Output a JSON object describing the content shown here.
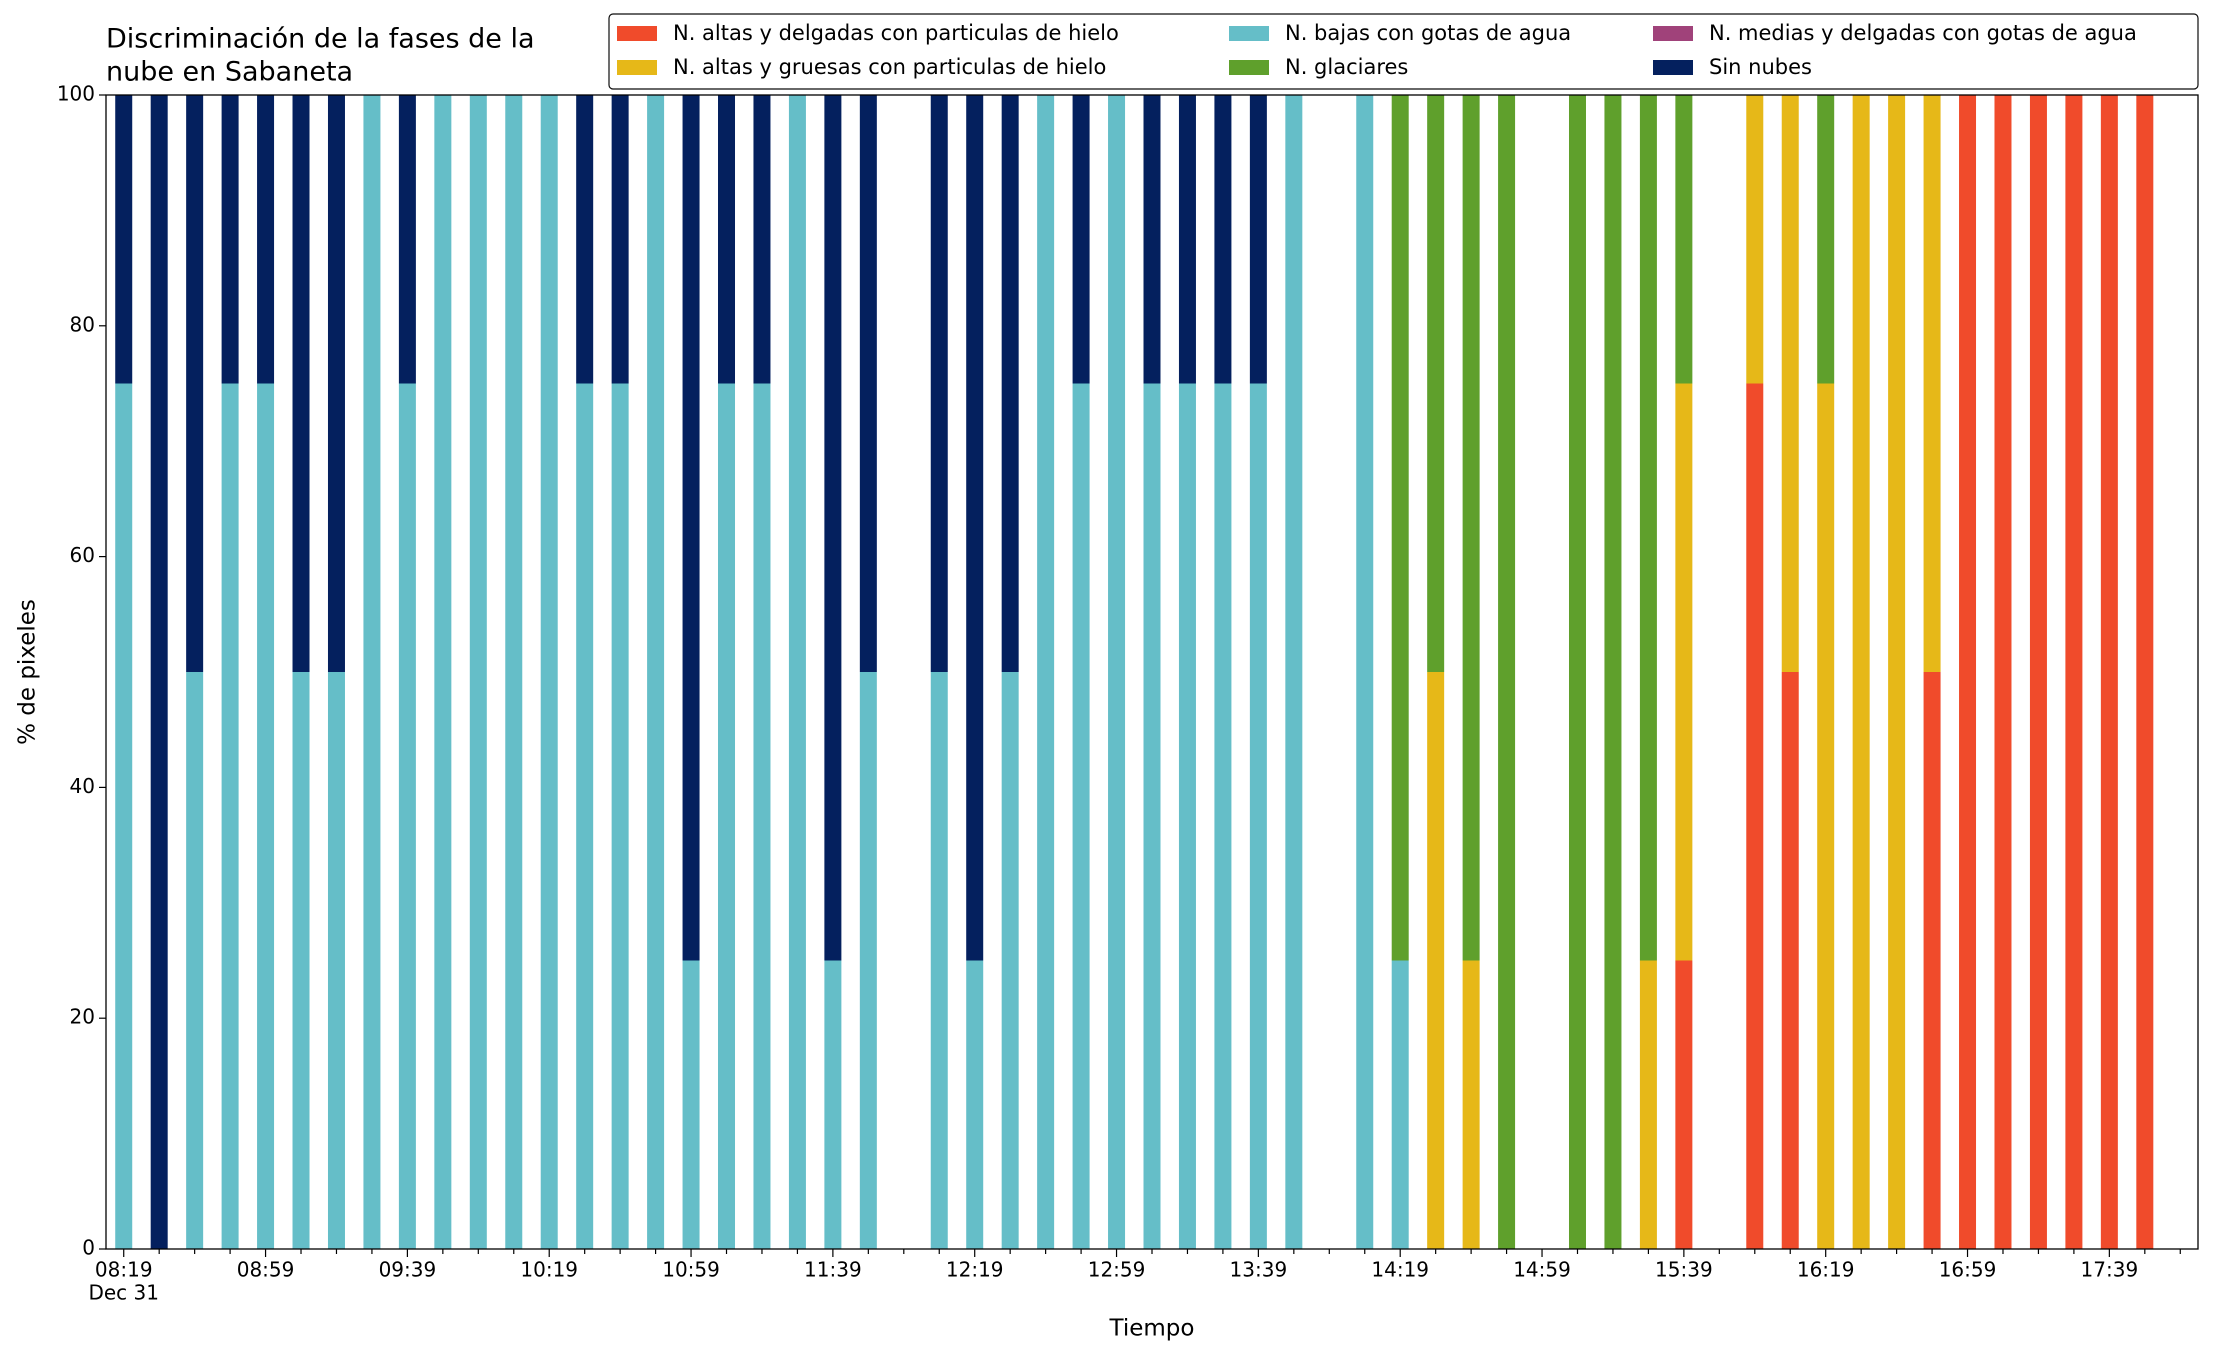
{
  "chart_data": {
    "type": "stacked_bar",
    "title": [
      "Discriminación de la fases de la",
      "nube en Sabaneta"
    ],
    "xlabel": "Tiempo",
    "ylabel": "% de pixeles",
    "date_label": "Dec 31",
    "categories": [
      "08:19",
      null,
      null,
      null,
      "08:59",
      null,
      null,
      null,
      "09:39",
      null,
      null,
      null,
      "10:19",
      null,
      null,
      null,
      "10:59",
      null,
      null,
      null,
      "11:39",
      null,
      null,
      null,
      "12:19",
      null,
      null,
      null,
      "12:59",
      null,
      null,
      null,
      "13:39",
      null,
      null,
      null,
      "14:19",
      null,
      null,
      null,
      "14:59",
      null,
      null,
      null,
      "15:39",
      null,
      null,
      null,
      "16:19",
      null,
      null,
      null,
      "16:59",
      null,
      null,
      null,
      "17:39",
      null
    ],
    "ylim": [
      0,
      100
    ],
    "yticks": [
      0,
      20,
      40,
      60,
      80,
      100
    ],
    "legend": "upper right",
    "series": [
      {
        "name": "N. altas y delgadas con particulas de hielo",
        "color": "#f04b2b",
        "values": [
          0,
          0,
          0,
          0,
          0,
          0,
          0,
          0,
          0,
          0,
          0,
          0,
          0,
          0,
          0,
          0,
          0,
          0,
          0,
          0,
          0,
          0,
          0,
          0,
          0,
          0,
          0,
          0,
          0,
          0,
          0,
          0,
          0,
          0,
          0,
          0,
          0,
          0,
          0,
          0,
          0,
          0,
          0,
          0,
          25,
          0,
          75,
          50,
          0,
          0,
          0,
          50,
          100,
          100,
          100,
          100,
          100,
          100
        ]
      },
      {
        "name": "N. altas y gruesas con particulas de hielo",
        "color": "#e6b818",
        "values": [
          0,
          0,
          0,
          0,
          0,
          0,
          0,
          0,
          0,
          0,
          0,
          0,
          0,
          0,
          0,
          0,
          0,
          0,
          0,
          0,
          0,
          0,
          0,
          0,
          0,
          0,
          0,
          0,
          0,
          0,
          0,
          0,
          0,
          0,
          0,
          0,
          0,
          50,
          25,
          0,
          0,
          0,
          0,
          25,
          50,
          0,
          25,
          50,
          75,
          100,
          100,
          50,
          0,
          0,
          0,
          0,
          0,
          0
        ]
      },
      {
        "name": "N. bajas con gotas de agua",
        "color": "#65bec8",
        "values": [
          75,
          0,
          50,
          75,
          75,
          50,
          50,
          100,
          75,
          100,
          100,
          100,
          100,
          75,
          75,
          100,
          25,
          75,
          75,
          100,
          25,
          50,
          0,
          50,
          25,
          50,
          100,
          75,
          100,
          75,
          75,
          75,
          75,
          100,
          0,
          100,
          25,
          0,
          0,
          0,
          0,
          0,
          0,
          0,
          0,
          0,
          0,
          0,
          0,
          0,
          0,
          0,
          0,
          0,
          0,
          0,
          0,
          0
        ]
      },
      {
        "name": "N. glaciares",
        "color": "#5fa02c",
        "values": [
          0,
          0,
          0,
          0,
          0,
          0,
          0,
          0,
          0,
          0,
          0,
          0,
          0,
          0,
          0,
          0,
          0,
          0,
          0,
          0,
          0,
          0,
          0,
          0,
          0,
          0,
          0,
          0,
          0,
          0,
          0,
          0,
          0,
          0,
          0,
          0,
          75,
          50,
          75,
          100,
          0,
          100,
          100,
          75,
          25,
          0,
          0,
          0,
          25,
          0,
          0,
          0,
          0,
          0,
          0,
          0,
          0,
          0
        ]
      },
      {
        "name": "N. medias y delgadas con gotas de agua",
        "color": "#a0427a",
        "values": [
          0,
          0,
          0,
          0,
          0,
          0,
          0,
          0,
          0,
          0,
          0,
          0,
          0,
          0,
          0,
          0,
          0,
          0,
          0,
          0,
          0,
          0,
          0,
          0,
          0,
          0,
          0,
          0,
          0,
          0,
          0,
          0,
          0,
          0,
          0,
          0,
          0,
          0,
          0,
          0,
          0,
          0,
          0,
          0,
          0,
          0,
          0,
          0,
          0,
          0,
          0,
          0,
          0,
          0,
          0,
          0,
          0,
          0
        ]
      },
      {
        "name": "Sin nubes",
        "color": "#04205e",
        "values": [
          25,
          100,
          50,
          25,
          25,
          50,
          50,
          0,
          25,
          0,
          0,
          0,
          0,
          25,
          25,
          0,
          75,
          25,
          25,
          0,
          75,
          50,
          0,
          50,
          75,
          50,
          0,
          25,
          0,
          25,
          25,
          25,
          25,
          0,
          0,
          0,
          0,
          0,
          0,
          0,
          0,
          0,
          0,
          0,
          0,
          0,
          0,
          0,
          0,
          0,
          0,
          0,
          0,
          0,
          0,
          0,
          0,
          0
        ]
      }
    ]
  }
}
